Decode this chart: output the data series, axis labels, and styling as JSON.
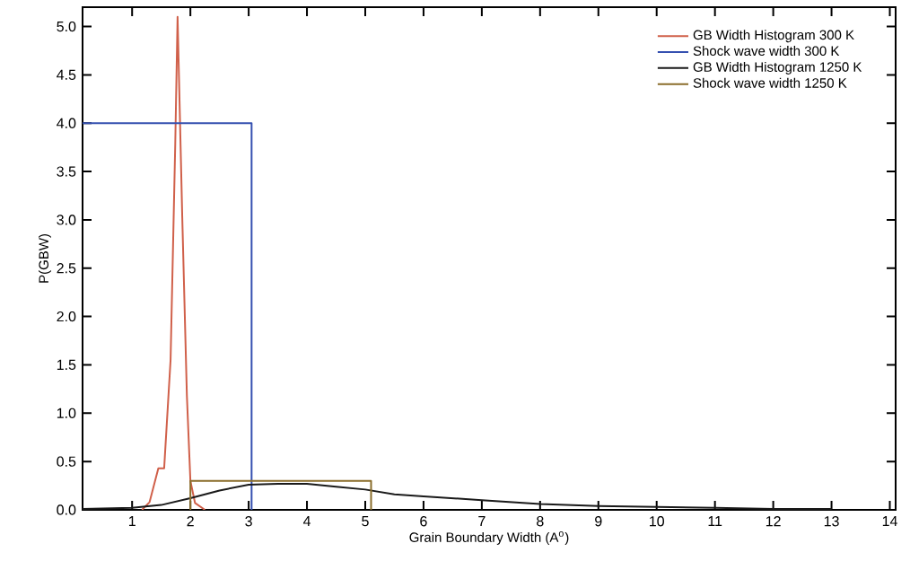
{
  "chart_data": {
    "type": "line",
    "xlabel": "Grain Boundary Width (A$^{o}$)",
    "ylabel": "P(GBW)",
    "xlim": [
      0.15,
      14.1
    ],
    "ylim": [
      0,
      5.2
    ],
    "xticks": [
      1,
      2,
      3,
      4,
      5,
      6,
      7,
      8,
      9,
      10,
      11,
      12,
      13,
      14
    ],
    "yticks": [
      {
        "value": 0,
        "label": "0.0"
      },
      {
        "value": 0.5,
        "label": "0.5"
      },
      {
        "value": 1,
        "label": "1.0"
      },
      {
        "value": 1.5,
        "label": "1.5"
      },
      {
        "value": 2,
        "label": "2.0"
      },
      {
        "value": 2.5,
        "label": "2.5"
      },
      {
        "value": 3,
        "label": "3.0"
      },
      {
        "value": 3.5,
        "label": "3.5"
      },
      {
        "value": 4,
        "label": "4.0"
      },
      {
        "value": 4.5,
        "label": "4.5"
      },
      {
        "value": 5,
        "label": "5.0"
      }
    ],
    "grid": false,
    "legend": "top right",
    "marker": "none",
    "line_style": "solid",
    "series": [
      {
        "name": "GB Width Histogram 300 K",
        "color": "#d0604a",
        "x": [
          1.17,
          1.3,
          1.45,
          1.55,
          1.66,
          1.74,
          1.78,
          1.86,
          1.94,
          2.0,
          2.08,
          2.25
        ],
        "values": [
          0.0,
          0.08,
          0.43,
          0.43,
          1.55,
          3.78,
          5.1,
          3.04,
          1.18,
          0.3,
          0.07,
          0.0
        ]
      },
      {
        "name": "Shock wave width 300 K",
        "type": "step",
        "color": "#3550b0",
        "x": [
          0.15,
          3.05
        ],
        "values": [
          4.0,
          0.0
        ]
      },
      {
        "name": "GB Width Histogram 1250 K",
        "color": "#1a1a1a",
        "x": [
          0.15,
          1.0,
          1.5,
          2.0,
          2.5,
          3.0,
          3.5,
          4.0,
          4.5,
          5.0,
          5.5,
          6.0,
          7.0,
          8.0,
          9.0,
          10.0,
          11.0,
          12.0,
          13.0
        ],
        "values": [
          0.01,
          0.02,
          0.05,
          0.12,
          0.2,
          0.26,
          0.27,
          0.27,
          0.24,
          0.21,
          0.16,
          0.14,
          0.1,
          0.06,
          0.04,
          0.03,
          0.02,
          0.01,
          0.01
        ]
      },
      {
        "name": "Shock wave width 1250 K",
        "color": "#8a6d2b",
        "x": [
          2.0,
          2.0,
          5.1,
          5.1
        ],
        "values": [
          0.0,
          0.3,
          0.3,
          0.0
        ]
      }
    ]
  }
}
